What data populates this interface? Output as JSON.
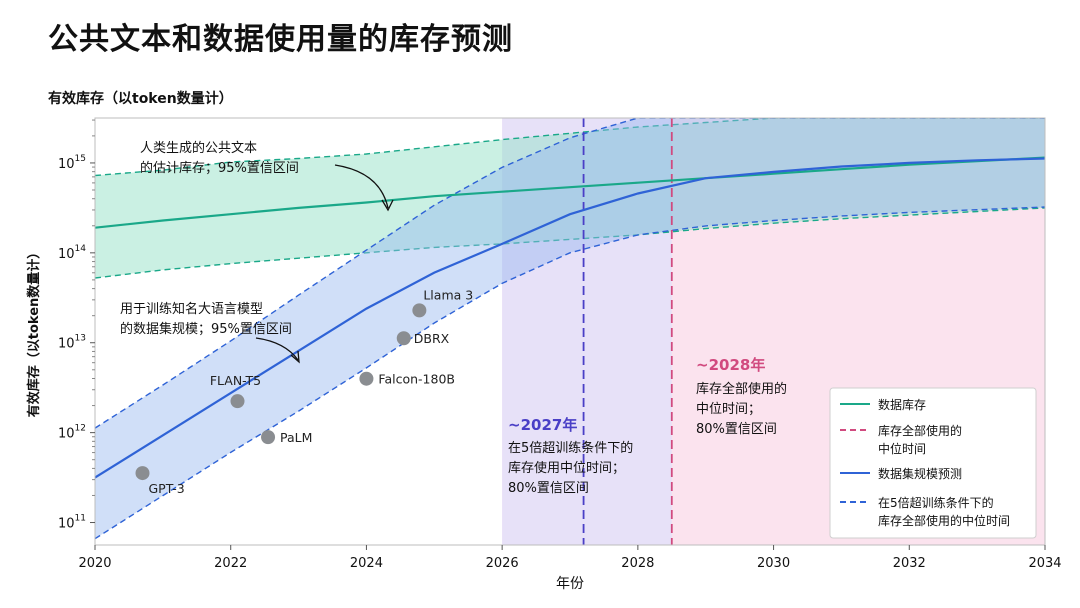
{
  "header": {
    "title": "公共文本和数据使用量的库存预测",
    "subtitle": "有效库存（以token数量计）"
  },
  "chart_data": {
    "type": "line",
    "xlabel": "年份",
    "ylabel": "有效库存（以token数量计）",
    "xlim": [
      2020,
      2034
    ],
    "ylim_log10": [
      10.75,
      15.5
    ],
    "y_scale": "log",
    "x_ticks": [
      "2020",
      "2022",
      "2024",
      "2026",
      "2028",
      "2030",
      "2032",
      "2034"
    ],
    "x_tick_values": [
      2020,
      2022,
      2024,
      2026,
      2028,
      2030,
      2032,
      2034
    ],
    "y_ticks": [
      {
        "base": "10",
        "exp": "11",
        "log": 11
      },
      {
        "base": "10",
        "exp": "12",
        "log": 12
      },
      {
        "base": "10",
        "exp": "13",
        "log": 13
      },
      {
        "base": "10",
        "exp": "14",
        "log": 14
      },
      {
        "base": "10",
        "exp": "15",
        "log": 15
      }
    ],
    "series": [
      {
        "name": "数据库存",
        "color": "#1aa889",
        "x": [
          2020,
          2021,
          2022,
          2023,
          2024,
          2025,
          2026,
          2027,
          2028,
          2029,
          2030,
          2031,
          2032,
          2033,
          2034
        ],
        "log10": [
          14.28,
          14.36,
          14.43,
          14.5,
          14.56,
          14.63,
          14.68,
          14.73,
          14.78,
          14.83,
          14.88,
          14.93,
          14.98,
          15.02,
          15.06
        ],
        "band_low": [
          13.72,
          13.81,
          13.88,
          13.94,
          14.0,
          14.06,
          14.1,
          14.15,
          14.2,
          14.27,
          14.33,
          14.38,
          14.42,
          14.46,
          14.5
        ],
        "band_high": [
          14.86,
          14.92,
          15.01,
          15.05,
          15.1,
          15.18,
          15.26,
          15.33,
          15.4,
          15.45,
          15.5,
          15.53,
          15.57,
          15.61,
          15.65
        ]
      },
      {
        "name": "数据集规模预测",
        "color": "#2f63d6",
        "x": [
          2020,
          2021,
          2022,
          2023,
          2024,
          2025,
          2026,
          2027,
          2028,
          2029,
          2030,
          2031,
          2032,
          2033,
          2034
        ],
        "log10": [
          11.5,
          11.97,
          12.44,
          12.91,
          13.38,
          13.78,
          14.1,
          14.43,
          14.66,
          14.83,
          14.9,
          14.96,
          15.0,
          15.03,
          15.05
        ],
        "band_low": [
          10.82,
          11.3,
          11.78,
          12.24,
          12.72,
          13.22,
          13.66,
          14.0,
          14.2,
          14.3,
          14.36,
          14.41,
          14.45,
          14.48,
          14.51
        ],
        "band_high": [
          12.05,
          12.53,
          13.02,
          13.53,
          14.03,
          14.53,
          14.95,
          15.28,
          15.5,
          15.65,
          15.7,
          15.72,
          15.74,
          15.75,
          15.77
        ]
      }
    ],
    "points": [
      {
        "label": "GPT-3",
        "x": 2020.7,
        "log10": 11.55
      },
      {
        "label": "FLAN-T5",
        "x": 2022.1,
        "log10": 12.35
      },
      {
        "label": "PaLM",
        "x": 2022.55,
        "log10": 11.95
      },
      {
        "label": "Falcon-180B",
        "x": 2024.0,
        "log10": 12.6
      },
      {
        "label": "DBRX",
        "x": 2024.55,
        "log10": 13.05
      },
      {
        "label": "Llama 3",
        "x": 2024.78,
        "log10": 13.36
      }
    ],
    "medians": [
      {
        "year": 2027.2,
        "color": "#4a3fc6",
        "band": [
          2026.0,
          2028.5
        ]
      },
      {
        "year": 2028.5,
        "color": "#d14a7f",
        "band": [
          2026.0,
          2034.0
        ]
      }
    ],
    "annotations": {
      "stock_band": [
        "人类生成的公共文本",
        "的估计库存；95%置信区间"
      ],
      "dataset_band": [
        "用于训练知名大语言模型",
        "的数据集规模；95%置信区间"
      ],
      "m2027_title": "~2027年",
      "m2027_lines": [
        "在5倍超训练条件下的",
        "库存使用中位时间；",
        "80%置信区间"
      ],
      "m2028_title": "~2028年",
      "m2028_lines": [
        "库存全部使用的",
        "中位时间；",
        "80%置信区间"
      ]
    },
    "legend": {
      "position": "bottom-right",
      "items": [
        {
          "label": "数据库存",
          "style": "solid",
          "color": "#1aa889"
        },
        {
          "label": "库存全部使用的中位时间",
          "lines": [
            "库存全部使用的",
            "中位时间"
          ],
          "style": "dashed",
          "color": "#d14a7f"
        },
        {
          "label": "数据集规模预测",
          "style": "solid",
          "color": "#2f63d6"
        },
        {
          "label": "在5倍超训练条件下的库存全部使用的中位时间",
          "lines": [
            "在5倍超训练条件下的",
            "库存全部使用的中位时间"
          ],
          "style": "dashed",
          "color": "#2f63d6"
        }
      ]
    }
  }
}
